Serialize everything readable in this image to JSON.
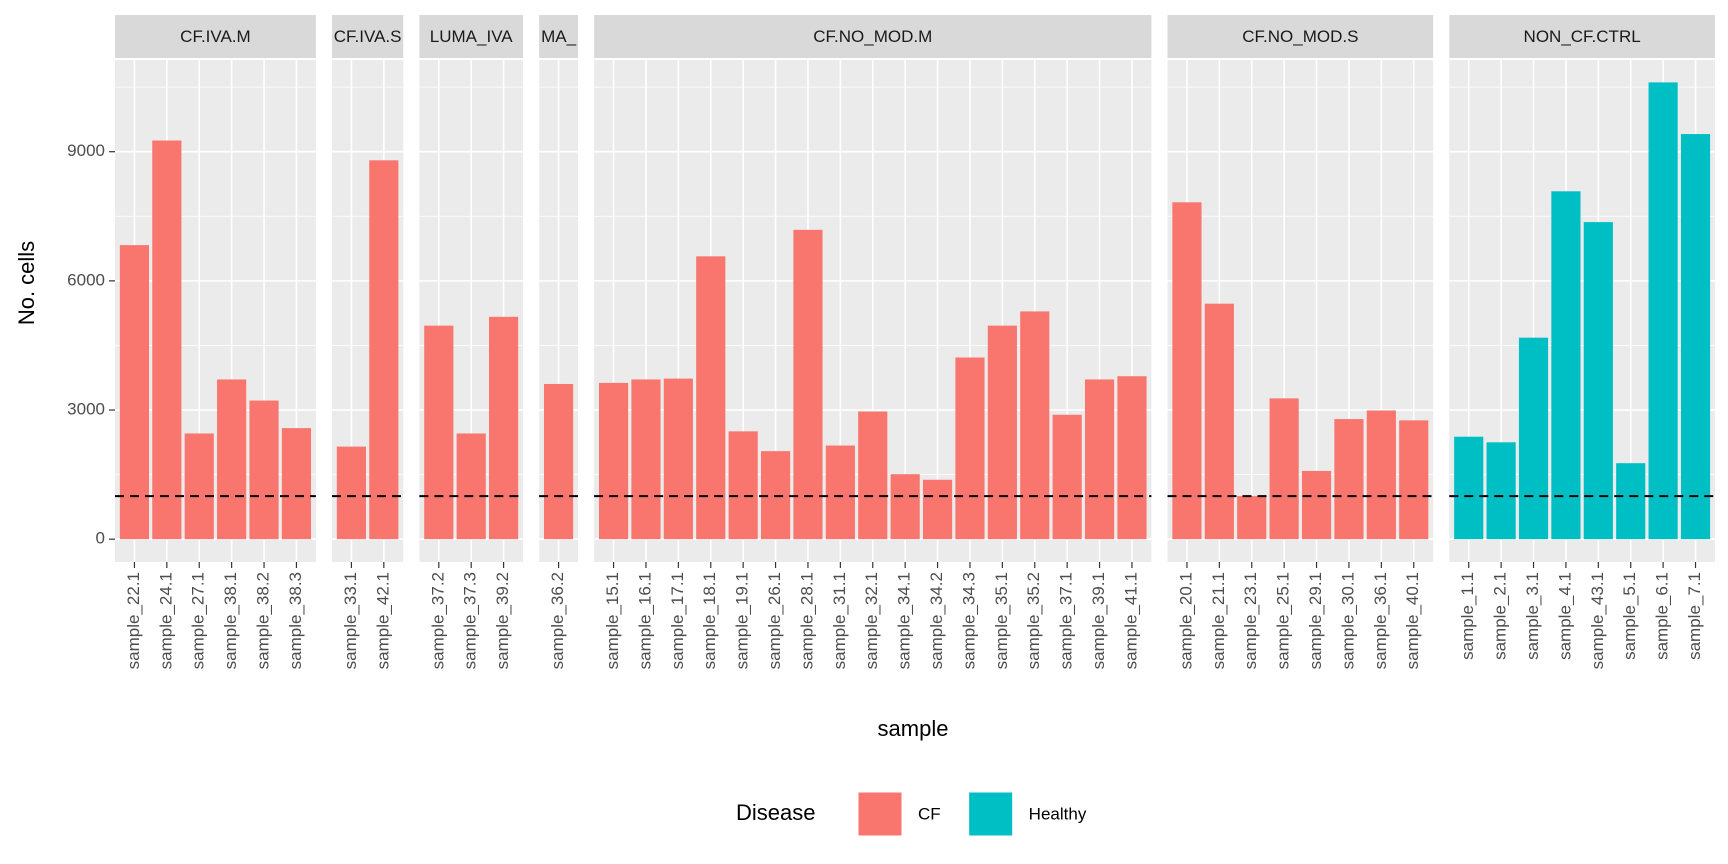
{
  "chart_data": {
    "type": "bar",
    "y_label": "No. cells",
    "x_label": "sample",
    "legend_title": "Disease",
    "ylim": [
      -530,
      11130
    ],
    "yticks": [
      0,
      3000,
      6000,
      9000
    ],
    "grid": true,
    "hline": 1000,
    "series": [
      {
        "name": "CF",
        "color": "#F8766D",
        "facets": [
          {
            "label": "CF.IVA.M",
            "categories": [
              "sample_22.1",
              "sample_24.1",
              "sample_27.1",
              "sample_38.1",
              "sample_38.2",
              "sample_38.3"
            ],
            "values": [
              6830,
              9260,
              2455,
              3710,
              3220,
              2580
            ]
          },
          {
            "label": "CF.IVA.S",
            "categories": [
              "sample_33.1",
              "sample_42.1"
            ],
            "values": [
              2150,
              8800
            ]
          },
          {
            "label": "LUMA_IVA",
            "categories": [
              "sample_37.2",
              "sample_37.3",
              "sample_39.2"
            ],
            "values": [
              4960,
              2455,
              5165
            ]
          },
          {
            "label": "MA_",
            "categories": [
              "sample_36.2"
            ],
            "values": [
              3605
            ]
          },
          {
            "label": "CF.NO_MOD.M",
            "categories": [
              "sample_15.1",
              "sample_16.1",
              "sample_17.1",
              "sample_18.1",
              "sample_19.1",
              "sample_26.1",
              "sample_28.1",
              "sample_31.1",
              "sample_32.1",
              "sample_34.1",
              "sample_34.2",
              "sample_34.3",
              "sample_35.1",
              "sample_35.2",
              "sample_37.1",
              "sample_39.1",
              "sample_41.1"
            ],
            "values": [
              3630,
              3710,
              3730,
              6570,
              2505,
              2045,
              7185,
              2175,
              2965,
              1510,
              1380,
              4220,
              4960,
              5290,
              2890,
              3710,
              3785
            ]
          },
          {
            "label": "CF.NO_MOD.S",
            "categories": [
              "sample_20.1",
              "sample_21.1",
              "sample_23.1",
              "sample_25.1",
              "sample_29.1",
              "sample_30.1",
              "sample_36.1",
              "sample_40.1"
            ],
            "values": [
              7825,
              5470,
              1000,
              3270,
              1585,
              2790,
              2990,
              2760
            ]
          }
        ]
      },
      {
        "name": "Healthy",
        "color": "#00BFC4",
        "facets": [
          {
            "label": "NON_CF.CTRL",
            "categories": [
              "sample_1.1",
              "sample_2.1",
              "sample_3.1",
              "sample_4.1",
              "sample_43.1",
              "sample_5.1",
              "sample_6.1",
              "sample_7.1"
            ],
            "values": [
              2380,
              2250,
              4680,
              8080,
              7365,
              1765,
              10610,
              9410
            ]
          }
        ]
      }
    ]
  }
}
